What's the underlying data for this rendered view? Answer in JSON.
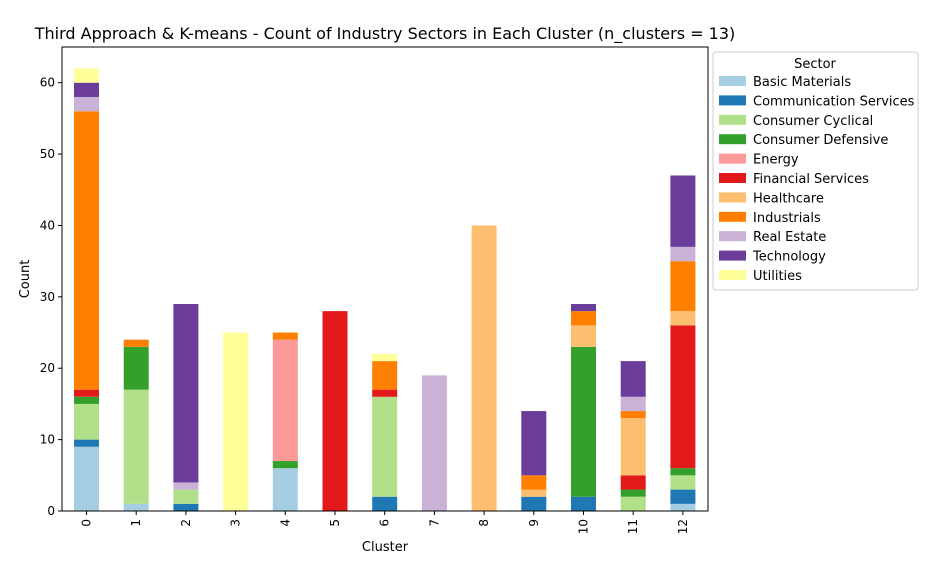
{
  "chart_data": {
    "type": "bar",
    "stacked": true,
    "title": "Third Approach & K-means - Count of Industry Sectors in Each Cluster (n_clusters = 13)",
    "xlabel": "Cluster",
    "ylabel": "Count",
    "ylim": [
      0,
      65
    ],
    "yticks": [
      0,
      10,
      20,
      30,
      40,
      50,
      60
    ],
    "categories": [
      "0",
      "1",
      "2",
      "3",
      "4",
      "5",
      "6",
      "7",
      "8",
      "9",
      "10",
      "11",
      "12"
    ],
    "legend": {
      "title": "Sector",
      "placement": "outside-top-right"
    },
    "series": [
      {
        "name": "Basic Materials",
        "color": "#a6cee3",
        "values": [
          9,
          1,
          0,
          0,
          6,
          0,
          0,
          0,
          0,
          0,
          0,
          0,
          1
        ]
      },
      {
        "name": "Communication Services",
        "color": "#1f78b4",
        "values": [
          1,
          0,
          1,
          0,
          0,
          0,
          2,
          0,
          0,
          2,
          2,
          0,
          2
        ]
      },
      {
        "name": "Consumer Cyclical",
        "color": "#b2df8a",
        "values": [
          5,
          16,
          2,
          0,
          0,
          0,
          14,
          0,
          0,
          0,
          0,
          2,
          2
        ]
      },
      {
        "name": "Consumer Defensive",
        "color": "#33a02c",
        "values": [
          1,
          6,
          0,
          0,
          1,
          0,
          0,
          0,
          0,
          0,
          21,
          1,
          1
        ]
      },
      {
        "name": "Energy",
        "color": "#fb9a99",
        "values": [
          0,
          0,
          0,
          0,
          17,
          0,
          0,
          0,
          0,
          0,
          0,
          0,
          0
        ]
      },
      {
        "name": "Financial Services",
        "color": "#e31a1c",
        "values": [
          1,
          0,
          0,
          0,
          0,
          28,
          1,
          0,
          0,
          0,
          0,
          2,
          20
        ]
      },
      {
        "name": "Healthcare",
        "color": "#fdbf6f",
        "values": [
          0,
          0,
          0,
          0,
          0,
          0,
          0,
          0,
          40,
          1,
          3,
          8,
          2
        ]
      },
      {
        "name": "Industrials",
        "color": "#ff7f00",
        "values": [
          39,
          1,
          0,
          0,
          1,
          0,
          4,
          0,
          0,
          2,
          2,
          1,
          7
        ]
      },
      {
        "name": "Real Estate",
        "color": "#cab2d6",
        "values": [
          2,
          0,
          1,
          0,
          0,
          0,
          0,
          19,
          0,
          0,
          0,
          2,
          2
        ]
      },
      {
        "name": "Technology",
        "color": "#6a3d9a",
        "values": [
          2,
          0,
          25,
          0,
          0,
          0,
          0,
          0,
          0,
          9,
          1,
          5,
          10
        ]
      },
      {
        "name": "Utilities",
        "color": "#ffff99",
        "values": [
          2,
          0,
          0,
          25,
          0,
          0,
          1,
          0,
          0,
          0,
          0,
          0,
          0
        ]
      }
    ]
  }
}
